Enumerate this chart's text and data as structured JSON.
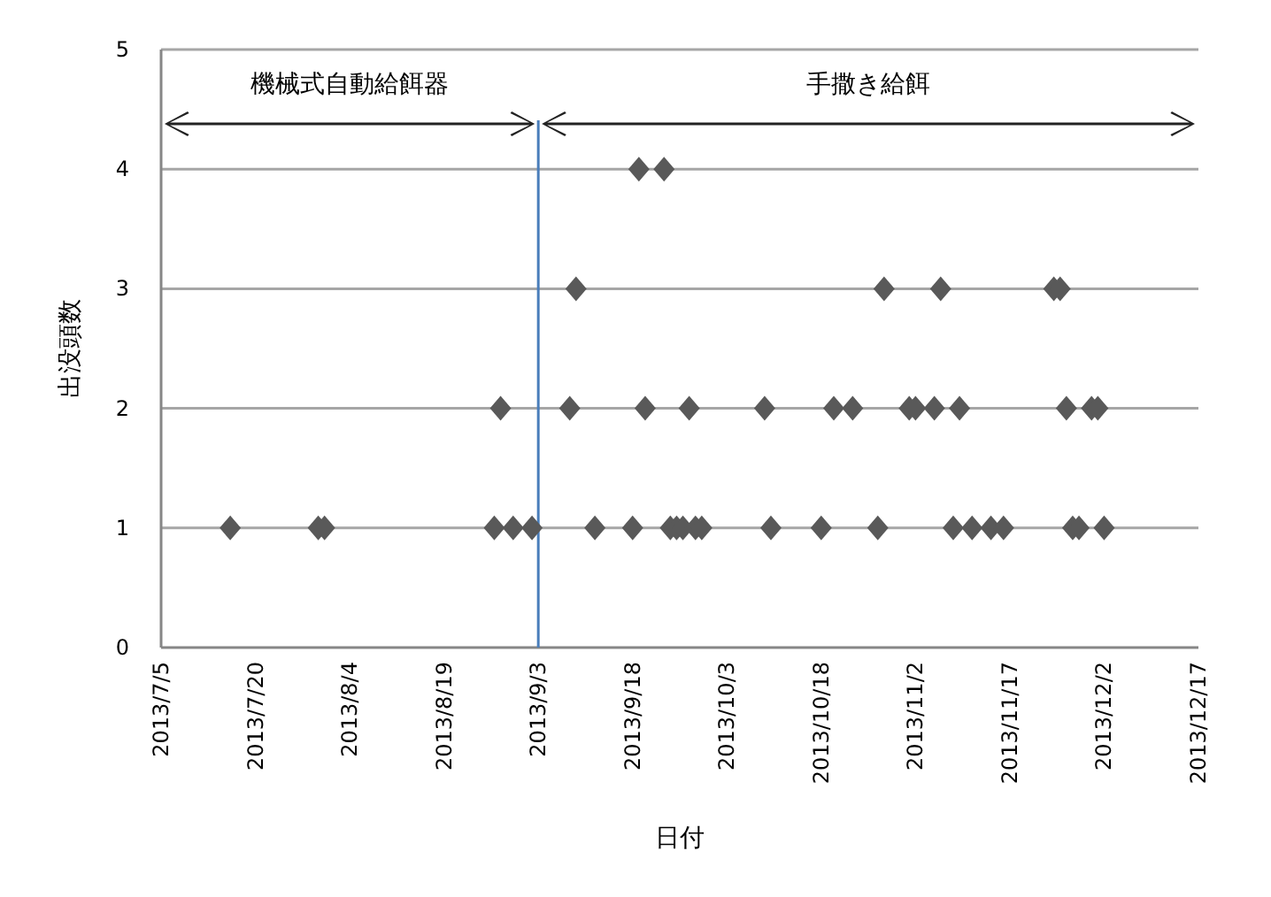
{
  "chart_data": {
    "type": "scatter",
    "xlabel": "日付",
    "ylabel": "出没頭数",
    "x": [
      "2013-07-16",
      "2013-07-30",
      "2013-07-31",
      "2013-08-27",
      "2013-08-28",
      "2013-08-30",
      "2013-09-02",
      "2013-09-08",
      "2013-09-09",
      "2013-09-12",
      "2013-09-18",
      "2013-09-19",
      "2013-09-20",
      "2013-09-23",
      "2013-09-24",
      "2013-09-25",
      "2013-09-26",
      "2013-09-27",
      "2013-09-28",
      "2013-09-29",
      "2013-10-09",
      "2013-10-10",
      "2013-10-18",
      "2013-10-20",
      "2013-10-23",
      "2013-10-27",
      "2013-10-28",
      "2013-11-01",
      "2013-11-02",
      "2013-11-05",
      "2013-11-06",
      "2013-11-08",
      "2013-11-09",
      "2013-11-11",
      "2013-11-14",
      "2013-11-16",
      "2013-11-24",
      "2013-11-25",
      "2013-11-26",
      "2013-11-27",
      "2013-11-28",
      "2013-11-30",
      "2013-12-01",
      "2013-12-02"
    ],
    "values": [
      1,
      1,
      1,
      1,
      2,
      1,
      1,
      2,
      3,
      1,
      1,
      4,
      2,
      4,
      1,
      1,
      1,
      2,
      1,
      1,
      2,
      1,
      1,
      2,
      2,
      1,
      3,
      2,
      2,
      2,
      3,
      1,
      2,
      1,
      1,
      1,
      3,
      3,
      2,
      1,
      1,
      2,
      2,
      1
    ],
    "color": "#595959",
    "marker": "diamond",
    "xlim": [
      "2013-07-05",
      "2013-12-17"
    ],
    "xticks": [
      {
        "value": "2013-07-05",
        "label": "2013/7/5"
      },
      {
        "value": "2013-07-20",
        "label": "2013/7/20"
      },
      {
        "value": "2013-08-04",
        "label": "2013/8/4"
      },
      {
        "value": "2013-08-19",
        "label": "2013/8/19"
      },
      {
        "value": "2013-09-03",
        "label": "2013/9/3"
      },
      {
        "value": "2013-09-18",
        "label": "2013/9/18"
      },
      {
        "value": "2013-10-03",
        "label": "2013/10/3"
      },
      {
        "value": "2013-10-18",
        "label": "2013/10/18"
      },
      {
        "value": "2013-11-02",
        "label": "2013/11/2"
      },
      {
        "value": "2013-11-17",
        "label": "2013/11/17"
      },
      {
        "value": "2013-12-02",
        "label": "2013/12/2"
      },
      {
        "value": "2013-12-17",
        "label": "2013/12/17"
      }
    ],
    "ylim": [
      0,
      5
    ],
    "yticks": [
      0,
      1,
      2,
      3,
      4,
      5
    ],
    "grid": "y",
    "ref_lines": [
      {
        "axis": "x",
        "value": "2013-09-03",
        "color": "#4a7ebb"
      }
    ],
    "annotations": [
      "機械式自動給餌器",
      "手撒き給餌"
    ]
  }
}
